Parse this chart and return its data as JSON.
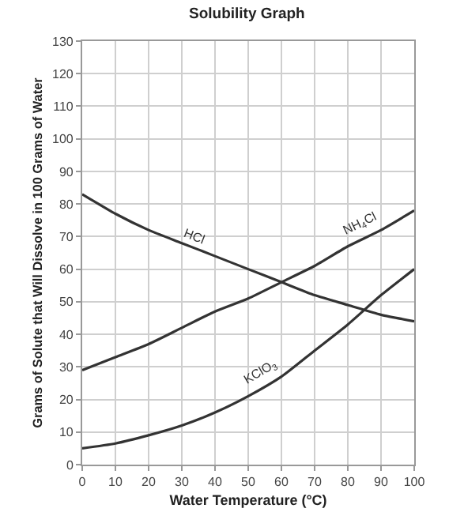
{
  "chart_data": {
    "type": "line",
    "title": "Solubility Graph",
    "xlabel": "Water Temperature (°C)",
    "ylabel": "Grams of Solute that Will Dissolve in 100 Grams of Water",
    "x": [
      0,
      10,
      20,
      30,
      40,
      50,
      60,
      70,
      80,
      90,
      100
    ],
    "series": [
      {
        "name": "HCl",
        "color": "#333333",
        "values": [
          83,
          77,
          72,
          68,
          64,
          60,
          56,
          52,
          49,
          46,
          44
        ]
      },
      {
        "name": "NH$_{4}$Cl",
        "color": "#333333",
        "values": [
          29,
          33,
          37,
          42,
          47,
          51,
          56,
          61,
          67,
          72,
          78
        ]
      },
      {
        "name": "KClO$_{3}$",
        "color": "#333333",
        "values": [
          5,
          6.5,
          9,
          12,
          16,
          21,
          27,
          35,
          43,
          52,
          60
        ]
      }
    ],
    "xlim": [
      0,
      100
    ],
    "xticks": [
      0,
      10,
      20,
      30,
      40,
      50,
      60,
      70,
      80,
      90,
      100
    ],
    "ylim": [
      0,
      130
    ],
    "yticks": [
      0,
      10,
      20,
      30,
      40,
      50,
      60,
      70,
      80,
      90,
      100,
      110,
      120,
      130
    ],
    "grid": true,
    "legend": false,
    "marker": "none",
    "line_style": "solid"
  }
}
